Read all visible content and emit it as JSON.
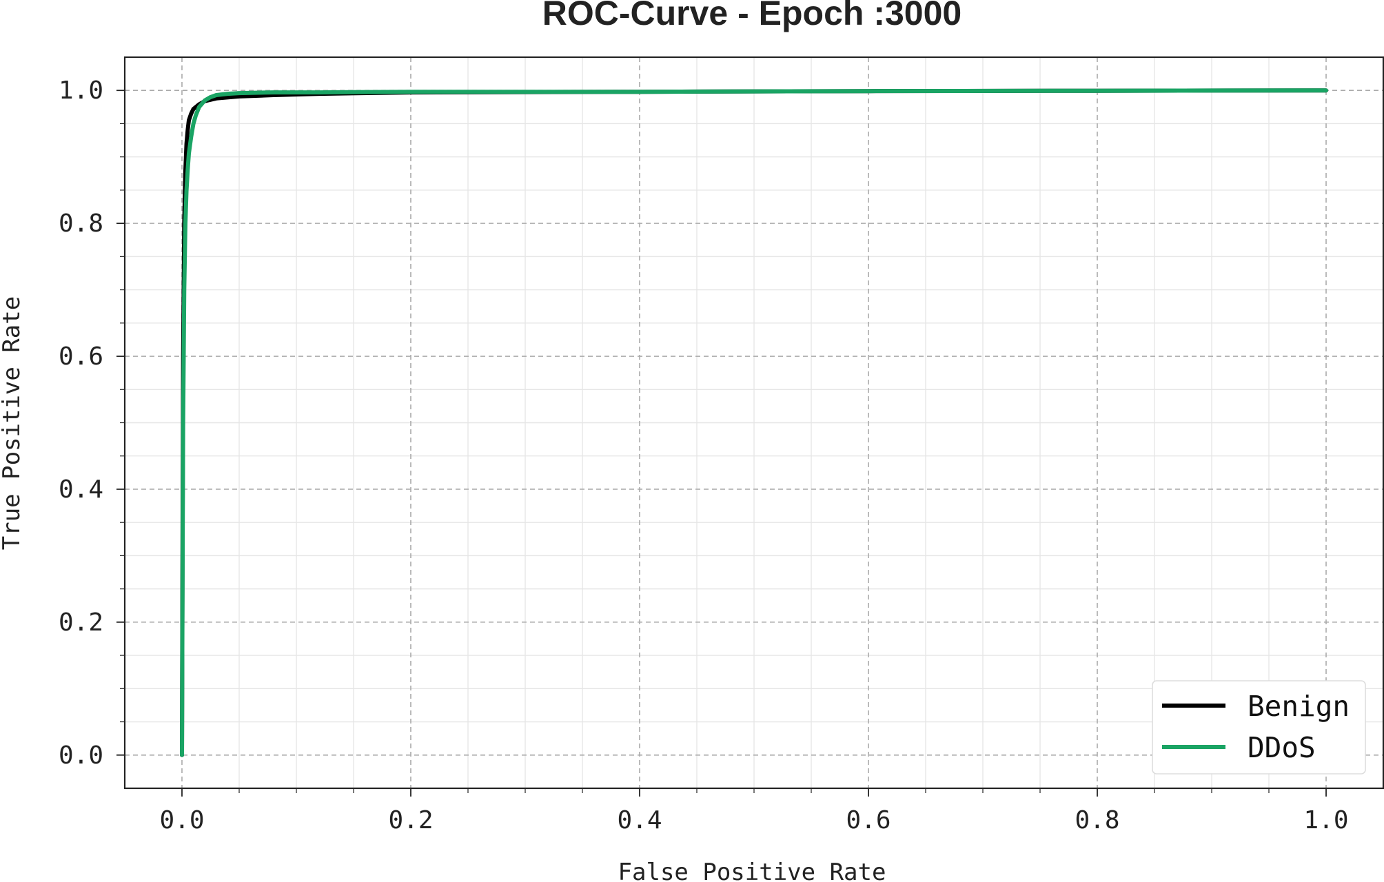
{
  "chart_data": {
    "type": "line",
    "title": "ROC-Curve - Epoch :3000",
    "xlabel": "False Positive Rate",
    "ylabel": "True Positive Rate",
    "xlim": [
      -0.05,
      1.05
    ],
    "ylim": [
      -0.05,
      1.05
    ],
    "xticks": [
      0.0,
      0.2,
      0.4,
      0.6,
      0.8,
      1.0
    ],
    "yticks": [
      0.0,
      0.2,
      0.4,
      0.6,
      0.8,
      1.0
    ],
    "xtick_labels": [
      "0.0",
      "0.2",
      "0.4",
      "0.6",
      "0.8",
      "1.0"
    ],
    "ytick_labels": [
      "0.0",
      "0.2",
      "0.4",
      "0.6",
      "0.8",
      "1.0"
    ],
    "grid": true,
    "legend_position": "bottom-right",
    "series": [
      {
        "name": "Benign",
        "color": "#000000",
        "x": [
          0.0,
          0.0005,
          0.001,
          0.002,
          0.003,
          0.004,
          0.005,
          0.006,
          0.008,
          0.01,
          0.015,
          0.02,
          0.03,
          0.05,
          0.08,
          0.12,
          0.2,
          0.4,
          0.6,
          0.8,
          1.0
        ],
        "y": [
          0.0,
          0.3,
          0.6,
          0.8,
          0.88,
          0.92,
          0.94,
          0.955,
          0.965,
          0.972,
          0.979,
          0.984,
          0.988,
          0.991,
          0.993,
          0.995,
          0.997,
          0.998,
          0.999,
          0.9995,
          1.0
        ]
      },
      {
        "name": "DDoS",
        "color": "#1aa464",
        "x": [
          0.0,
          0.0005,
          0.001,
          0.002,
          0.003,
          0.004,
          0.005,
          0.006,
          0.008,
          0.01,
          0.012,
          0.015,
          0.02,
          0.025,
          0.03,
          0.04,
          0.05,
          0.08,
          0.12,
          0.2,
          0.4,
          0.6,
          0.8,
          1.0
        ],
        "y": [
          0.0,
          0.25,
          0.5,
          0.7,
          0.8,
          0.85,
          0.88,
          0.905,
          0.93,
          0.95,
          0.962,
          0.975,
          0.985,
          0.99,
          0.993,
          0.995,
          0.996,
          0.997,
          0.997,
          0.998,
          0.998,
          0.999,
          0.9995,
          1.0
        ]
      }
    ]
  }
}
